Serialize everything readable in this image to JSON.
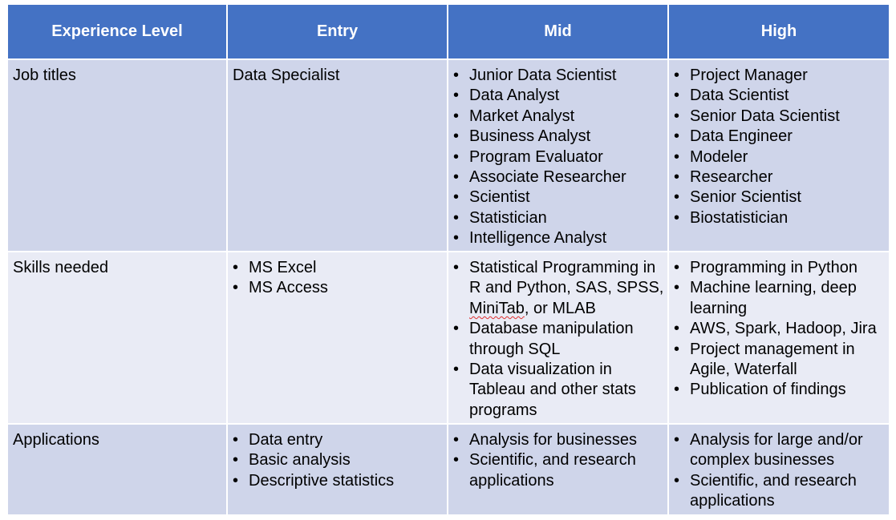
{
  "header": {
    "col_experience": "Experience Level",
    "col_entry": "Entry",
    "col_mid": "Mid",
    "col_high": "High"
  },
  "rows": [
    {
      "label": "Job titles",
      "entry_text": "Data Specialist",
      "mid": [
        "Junior Data Scientist",
        "Data Analyst",
        "Market Analyst",
        "Business Analyst",
        "Program Evaluator",
        "Associate Researcher",
        "Scientist",
        "Statistician",
        "Intelligence Analyst"
      ],
      "high": [
        "Project Manager",
        "Data Scientist",
        "Senior Data Scientist",
        "Data Engineer",
        "Modeler",
        "Researcher",
        "Senior Scientist",
        "Biostatistician"
      ]
    },
    {
      "label": "Skills needed",
      "entry": [
        "MS Excel",
        "MS Access"
      ],
      "mid_item1_before": "Statistical Programming in R and Python, SAS, SPSS, ",
      "mid_item1_flagged": "MiniTab",
      "mid_item1_after": ", or MLAB",
      "mid_rest": [
        "Database manipulation through SQL",
        "Data visualization in Tableau and other stats programs"
      ],
      "high": [
        "Programming in Python",
        "Machine learning, deep learning",
        "AWS, Spark, Hadoop, Jira",
        "Project management in Agile, Waterfall",
        "Publication of findings"
      ]
    },
    {
      "label": "Applications",
      "entry": [
        "Data entry",
        "Basic analysis",
        "Descriptive statistics"
      ],
      "mid": [
        "Analysis for businesses",
        "Scientific, and research applications"
      ],
      "high": [
        "Analysis for large and/or complex businesses",
        "Scientific, and research applications"
      ]
    }
  ]
}
